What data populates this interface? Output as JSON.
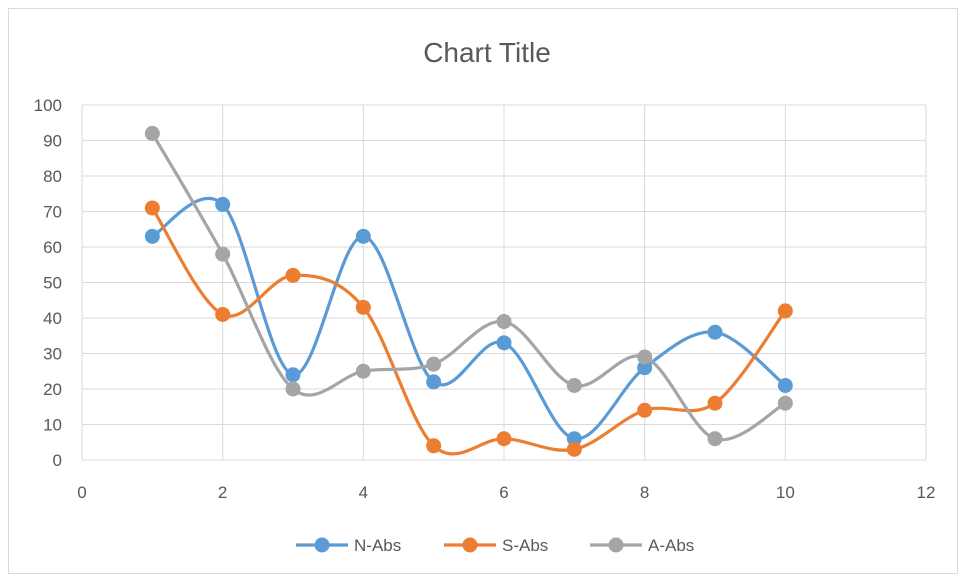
{
  "chart_data": {
    "type": "scatter",
    "title": "Chart Title",
    "xlim": [
      0,
      12
    ],
    "ylim": [
      0,
      100
    ],
    "x_ticks": [
      0,
      2,
      4,
      6,
      8,
      10,
      12
    ],
    "y_ticks": [
      0,
      10,
      20,
      30,
      40,
      50,
      60,
      70,
      80,
      90,
      100
    ],
    "grid": true,
    "smooth_lines": true,
    "legend_position": "bottom",
    "series": [
      {
        "name": "N-Abs",
        "color": "#5b9bd5",
        "x": [
          1,
          2,
          3,
          4,
          5,
          6,
          7,
          8,
          9,
          10
        ],
        "y": [
          63,
          72,
          24,
          63,
          22,
          33,
          6,
          26,
          36,
          21
        ]
      },
      {
        "name": "S-Abs",
        "color": "#ed7d31",
        "x": [
          1,
          2,
          3,
          4,
          5,
          6,
          7,
          8,
          9,
          10
        ],
        "y": [
          71,
          41,
          52,
          43,
          4,
          6,
          3,
          14,
          16,
          42
        ]
      },
      {
        "name": "A-Abs",
        "color": "#a5a5a5",
        "x": [
          1,
          2,
          3,
          4,
          5,
          6,
          7,
          8,
          9,
          10
        ],
        "y": [
          92,
          58,
          20,
          25,
          27,
          39,
          21,
          29,
          6,
          16
        ]
      }
    ]
  }
}
